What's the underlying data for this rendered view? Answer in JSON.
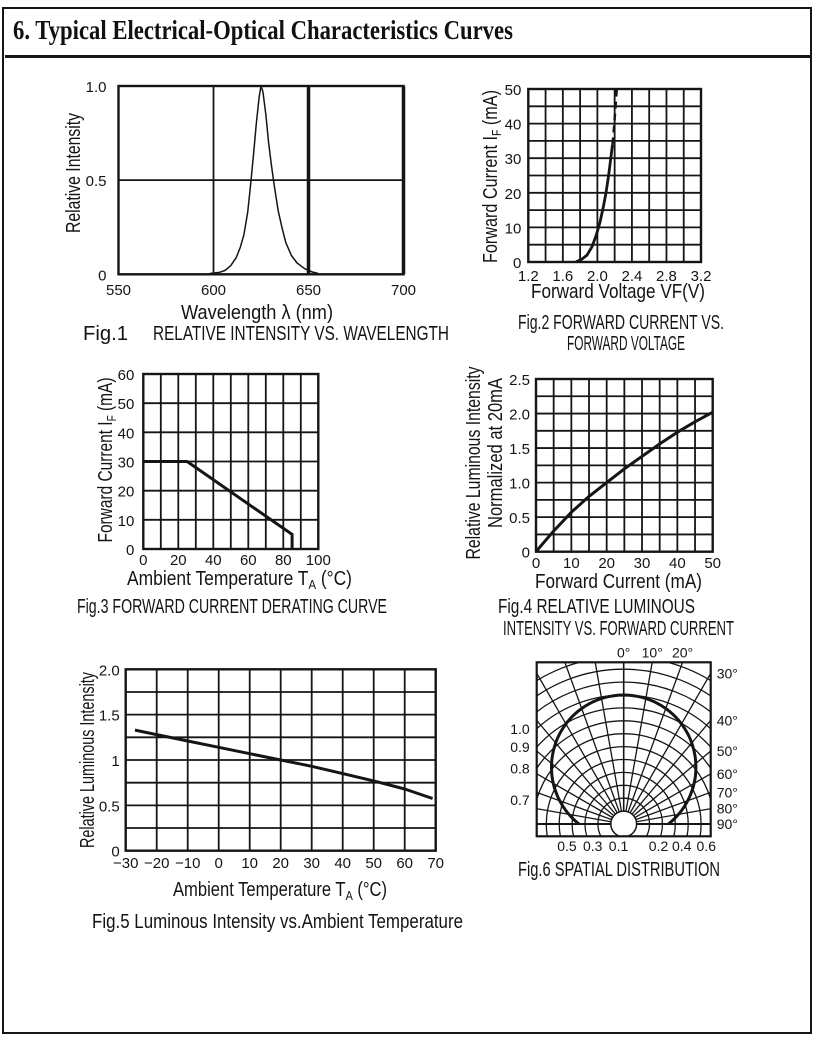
{
  "page": {
    "title": "6. Typical Electrical-Optical Characteristics Curves"
  },
  "chart_data": [
    {
      "name": "fig1",
      "type": "line",
      "fig_label": "Fig.1",
      "caption_lines": [
        "Fig.1",
        "RELATIVE INTENSITY VS. WAVELENGTH"
      ],
      "xlabel": "Wavelength λ (nm)",
      "ylabel": "Relative Intensity",
      "xlim": [
        550,
        700
      ],
      "ylim": [
        0,
        1
      ],
      "xticks": [
        {
          "v": 550,
          "label": "550"
        },
        {
          "v": 600,
          "label": "600"
        },
        {
          "v": 650,
          "label": "650"
        },
        {
          "v": 700,
          "label": "700"
        }
      ],
      "yticks": [
        {
          "v": 1,
          "label": "1.0"
        },
        {
          "v": 0.5,
          "label": "0.5"
        },
        {
          "v": 0,
          "label": "0"
        }
      ],
      "vlines": [
        {
          "v": 600,
          "w": 1.8
        },
        {
          "v": 650,
          "w": 3.5
        },
        {
          "v": 700,
          "w": 3.5
        }
      ],
      "hlines": [
        {
          "v": 0.5,
          "w": 1.8
        }
      ],
      "series": [
        {
          "name": "relative-intensity",
          "width": 1.5,
          "points": [
            [
              598,
              0.004
            ],
            [
              603,
              0.01
            ],
            [
              606,
              0.02
            ],
            [
              609,
              0.045
            ],
            [
              612,
              0.09
            ],
            [
              614,
              0.14
            ],
            [
              616,
              0.21
            ],
            [
              618,
              0.33
            ],
            [
              619.5,
              0.47
            ],
            [
              621,
              0.63
            ],
            [
              622.5,
              0.8
            ],
            [
              624,
              0.94
            ],
            [
              625,
              1.0
            ],
            [
              626,
              0.97
            ],
            [
              627.5,
              0.85
            ],
            [
              629,
              0.7
            ],
            [
              630.5,
              0.58
            ],
            [
              632,
              0.47
            ],
            [
              634,
              0.34
            ],
            [
              636,
              0.25
            ],
            [
              638,
              0.17
            ],
            [
              641,
              0.1
            ],
            [
              644,
              0.06
            ],
            [
              648,
              0.03
            ],
            [
              652,
              0.012
            ],
            [
              655,
              0.005
            ]
          ]
        }
      ]
    },
    {
      "name": "fig2",
      "type": "line",
      "fig_label": "Fig.2",
      "caption_lines": [
        "Fig.2 FORWARD CURRENT VS.",
        "FORWARD VOLTAGE"
      ],
      "xlabel": "Forward Voltage VF(V)",
      "ylabel_segments": [
        {
          "t": "Forward Current I"
        },
        {
          "t": "F",
          "sub": true
        },
        {
          "t": " (mA)"
        }
      ],
      "xlim": [
        1.2,
        3.2
      ],
      "ylim": [
        0,
        50
      ],
      "grid": {
        "xstep": 0.2,
        "ystep": 5
      },
      "xticks": [
        {
          "v": 1.2,
          "label": "1.2"
        },
        {
          "v": 1.6,
          "label": "1.6"
        },
        {
          "v": 2.0,
          "label": "2.0"
        },
        {
          "v": 2.4,
          "label": "2.4"
        },
        {
          "v": 2.8,
          "label": "2.8"
        },
        {
          "v": 3.2,
          "label": "3.2"
        }
      ],
      "yticks": [
        {
          "v": 0,
          "label": "0"
        },
        {
          "v": 10,
          "label": "10"
        },
        {
          "v": 20,
          "label": "20"
        },
        {
          "v": 30,
          "label": "30"
        },
        {
          "v": 40,
          "label": "40"
        },
        {
          "v": 50,
          "label": "50"
        }
      ],
      "series": [
        {
          "name": "forward-current-solid",
          "width": 2.8,
          "points": [
            [
              1.75,
              0
            ],
            [
              1.82,
              0.8
            ],
            [
              1.88,
              2
            ],
            [
              1.94,
              4.5
            ],
            [
              1.99,
              8
            ],
            [
              2.03,
              11.5
            ],
            [
              2.07,
              16
            ],
            [
              2.1,
              20
            ],
            [
              2.13,
              25
            ],
            [
              2.155,
              30
            ],
            [
              2.175,
              34
            ]
          ]
        },
        {
          "name": "forward-current-dashed",
          "width": 2.4,
          "dash": "7 5",
          "points": [
            [
              2.175,
              34
            ],
            [
              2.2,
              41
            ],
            [
              2.225,
              50
            ]
          ]
        }
      ]
    },
    {
      "name": "fig3",
      "type": "line",
      "fig_label": "Fig.3",
      "caption_lines": [
        "Fig.3 FORWARD CURRENT DERATING CURVE"
      ],
      "xlabel_segments": [
        {
          "t": "Ambient Temperature T"
        },
        {
          "t": "A",
          "sub": true
        },
        {
          "t": " (°C)"
        }
      ],
      "ylabel_segments": [
        {
          "t": "Forward Current I"
        },
        {
          "t": "F",
          "sub": true
        },
        {
          "t": " (mA)"
        }
      ],
      "xlim": [
        0,
        100
      ],
      "ylim": [
        0,
        60
      ],
      "grid": {
        "xstep": 10,
        "ystep": 10
      },
      "xticks": [
        {
          "v": 0,
          "label": "0"
        },
        {
          "v": 20,
          "label": "20"
        },
        {
          "v": 40,
          "label": "40"
        },
        {
          "v": 60,
          "label": "60"
        },
        {
          "v": 80,
          "label": "80"
        },
        {
          "v": 100,
          "label": "100"
        }
      ],
      "yticks": [
        {
          "v": 0,
          "label": "0"
        },
        {
          "v": 10,
          "label": "10"
        },
        {
          "v": 20,
          "label": "20"
        },
        {
          "v": 30,
          "label": "30"
        },
        {
          "v": 40,
          "label": "40"
        },
        {
          "v": 50,
          "label": "50"
        },
        {
          "v": 60,
          "label": "60"
        }
      ],
      "series": [
        {
          "name": "derating",
          "width": 3,
          "points": [
            [
              0,
              30
            ],
            [
              25,
              30
            ],
            [
              85,
              5
            ],
            [
              85,
              0
            ]
          ]
        }
      ]
    },
    {
      "name": "fig4",
      "type": "line",
      "fig_label": "Fig.4",
      "caption_lines": [
        "Fig.4 RELATIVE LUMINOUS",
        "INTENSITY VS. FORWARD CURRENT"
      ],
      "xlabel": "Forward Current (mA)",
      "ylabel_lines": [
        "Relative Luminous Intensity",
        "Normalized at 20mA"
      ],
      "xlim": [
        0,
        50
      ],
      "ylim": [
        0,
        2.5
      ],
      "grid": {
        "xstep": 5,
        "ystep": 0.25
      },
      "xticks": [
        {
          "v": 0,
          "label": "0"
        },
        {
          "v": 10,
          "label": "10"
        },
        {
          "v": 20,
          "label": "20"
        },
        {
          "v": 30,
          "label": "30"
        },
        {
          "v": 40,
          "label": "40"
        },
        {
          "v": 50,
          "label": "50"
        }
      ],
      "yticks": [
        {
          "v": 0,
          "label": "0"
        },
        {
          "v": 0.5,
          "label": "0.5"
        },
        {
          "v": 1,
          "label": "1.0"
        },
        {
          "v": 1.5,
          "label": "1.5"
        },
        {
          "v": 2,
          "label": "2.0"
        },
        {
          "v": 2.5,
          "label": "2.5"
        }
      ],
      "series": [
        {
          "name": "relative-luminous",
          "width": 3,
          "points": [
            [
              0,
              0
            ],
            [
              2.5,
              0.15
            ],
            [
              5,
              0.3
            ],
            [
              10,
              0.57
            ],
            [
              15,
              0.8
            ],
            [
              20,
              1.0
            ],
            [
              25,
              1.2
            ],
            [
              30,
              1.38
            ],
            [
              35,
              1.56
            ],
            [
              40,
              1.73
            ],
            [
              45,
              1.88
            ],
            [
              50,
              2.02
            ]
          ]
        }
      ]
    },
    {
      "name": "fig5",
      "type": "line",
      "fig_label": "Fig.5",
      "caption_lines": [
        "Fig.5 Luminous Intensity vs.Ambient Temperature"
      ],
      "xlabel_segments": [
        {
          "t": "Ambient Temperature T"
        },
        {
          "t": "A",
          "sub": true
        },
        {
          "t": " (°C)"
        }
      ],
      "ylabel": "Relative Luminous Intensity",
      "xlim": [
        -30,
        70
      ],
      "ylim": [
        0,
        2
      ],
      "grid": {
        "xstep": 10,
        "ystep": 0.25
      },
      "xticks": [
        {
          "v": -30,
          "label": "−30"
        },
        {
          "v": -20,
          "label": "−20"
        },
        {
          "v": -10,
          "label": "−10"
        },
        {
          "v": 0,
          "label": "0"
        },
        {
          "v": 10,
          "label": "10"
        },
        {
          "v": 20,
          "label": "20"
        },
        {
          "v": 30,
          "label": "30"
        },
        {
          "v": 40,
          "label": "40"
        },
        {
          "v": 50,
          "label": "50"
        },
        {
          "v": 60,
          "label": "60"
        },
        {
          "v": 70,
          "label": "70"
        }
      ],
      "yticks": [
        {
          "v": 0,
          "label": "0"
        },
        {
          "v": 0.5,
          "label": "0.5"
        },
        {
          "v": 1,
          "label": "1"
        },
        {
          "v": 1.5,
          "label": "1.5"
        },
        {
          "v": 2,
          "label": "2.0"
        }
      ],
      "series": [
        {
          "name": "luminous-vs-temp",
          "width": 3,
          "points": [
            [
              -27,
              1.33
            ],
            [
              -20,
              1.28
            ],
            [
              -10,
              1.21
            ],
            [
              0,
              1.14
            ],
            [
              10,
              1.07
            ],
            [
              20,
              1.0
            ],
            [
              30,
              0.93
            ],
            [
              40,
              0.85
            ],
            [
              50,
              0.77
            ],
            [
              60,
              0.68
            ],
            [
              69,
              0.575
            ]
          ]
        }
      ]
    },
    {
      "name": "fig6",
      "type": "polar",
      "fig_label": "Fig.6",
      "caption_lines": [
        "Fig.6 SPATIAL DISTRIBUTION"
      ],
      "angle_step_deg": 10,
      "angle_range": [
        -90,
        90
      ],
      "arc_values": [
        0.2,
        0.3,
        0.4,
        0.5,
        0.6,
        0.7,
        0.8,
        0.9,
        1.0,
        1.1,
        1.2,
        1.3
      ],
      "inner_circle_value": 0.1,
      "lobe": {
        "shape": "circle",
        "center_offset": 0.44,
        "radius": 0.56
      },
      "top_angle_labels": [
        {
          "deg": 0,
          "label": "0°"
        },
        {
          "deg": 10,
          "label": "10°"
        },
        {
          "deg": 20,
          "label": "20°"
        }
      ],
      "right_angle_labels": [
        {
          "deg": 30,
          "label": "30°"
        },
        {
          "deg": 40,
          "label": "40°"
        },
        {
          "deg": 50,
          "label": "50°"
        },
        {
          "deg": 60,
          "label": "60°"
        },
        {
          "deg": 70,
          "label": "70°"
        },
        {
          "deg": 80,
          "label": "80°"
        },
        {
          "deg": 90,
          "label": "90°"
        }
      ],
      "left_radius_labels": [
        {
          "v": 1.0,
          "label": "1.0"
        },
        {
          "v": 0.9,
          "label": "0.9"
        },
        {
          "v": 0.8,
          "label": "0.8"
        },
        {
          "v": 0.7,
          "label": "0.7"
        }
      ],
      "bottom_radius_labels": [
        {
          "label": "0.5"
        },
        {
          "label": "0.3"
        },
        {
          "label": "0.1"
        },
        {
          "label": "0.2"
        },
        {
          "label": "0.4"
        },
        {
          "label": "0.6"
        }
      ]
    }
  ]
}
